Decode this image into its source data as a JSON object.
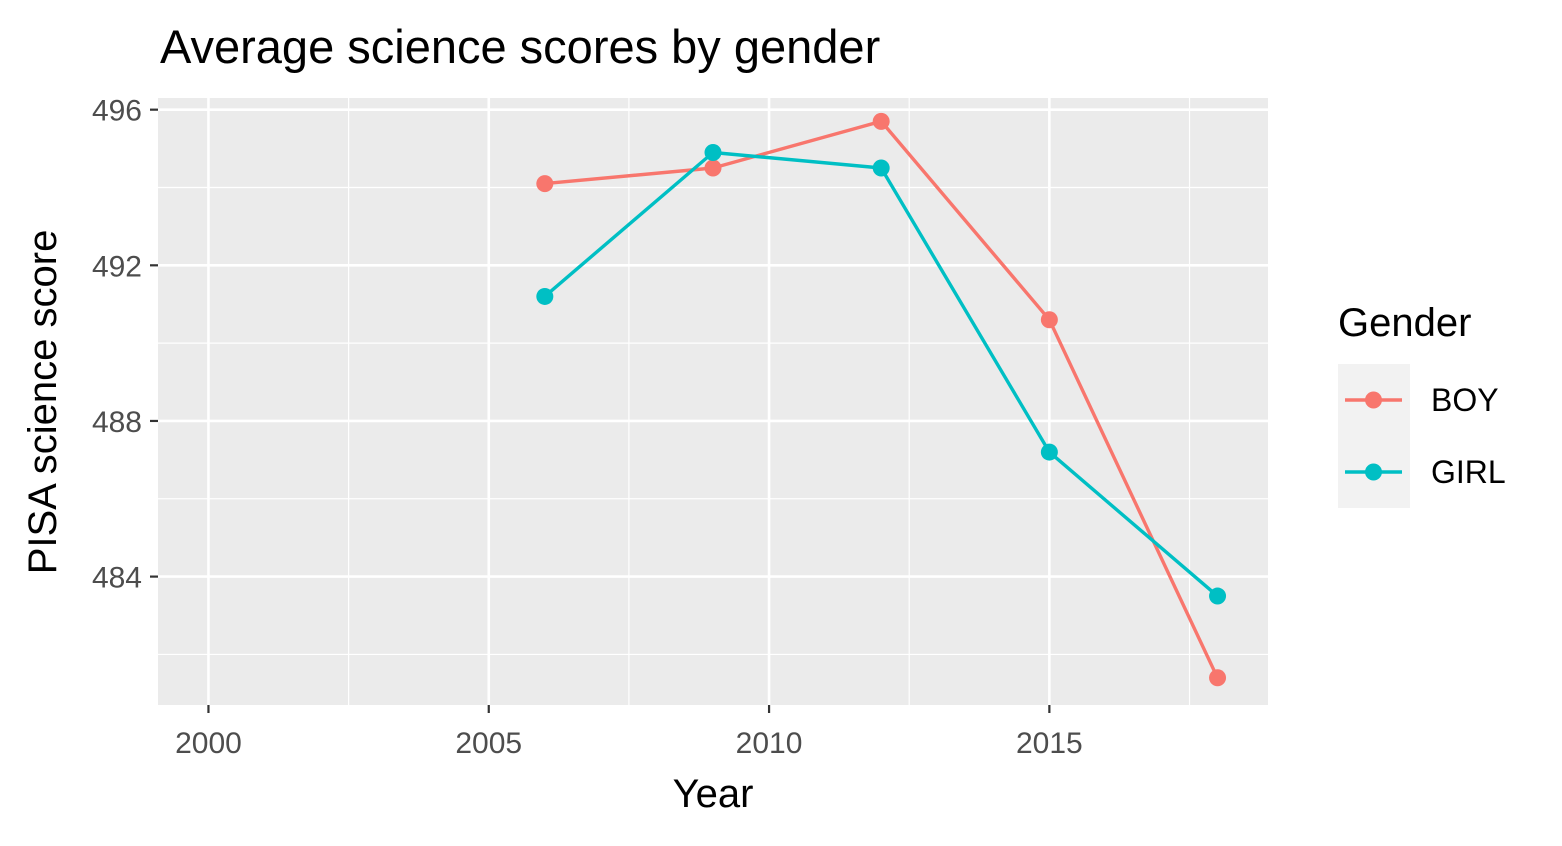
{
  "chart_data": {
    "type": "line",
    "title": "Average science scores by gender",
    "xlabel": "Year",
    "ylabel": "PISA science score",
    "xlim": [
      1999.1,
      2018.9
    ],
    "ylim": [
      480.7,
      496.3
    ],
    "x_ticks": [
      2000,
      2005,
      2010,
      2015
    ],
    "y_ticks": [
      484,
      488,
      492,
      496
    ],
    "grid": true,
    "legend_position": "right",
    "legend_title": "Gender",
    "series": [
      {
        "name": "BOY",
        "color": "#F8766D",
        "x": [
          2006,
          2009,
          2012,
          2015,
          2018
        ],
        "y": [
          494.1,
          494.5,
          495.7,
          490.6,
          481.4
        ]
      },
      {
        "name": "GIRL",
        "color": "#00BFC4",
        "x": [
          2006,
          2009,
          2012,
          2015,
          2018
        ],
        "y": [
          491.2,
          494.9,
          494.5,
          487.2,
          483.5
        ]
      }
    ]
  }
}
